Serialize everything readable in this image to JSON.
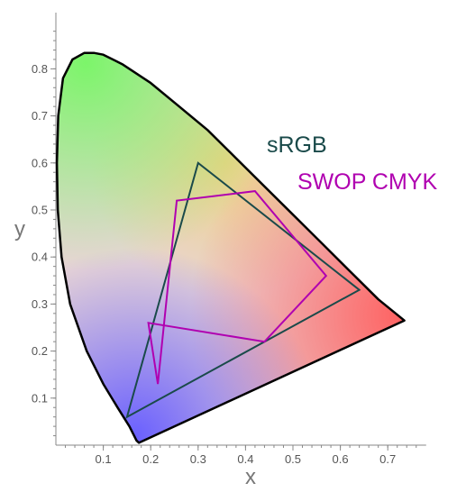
{
  "chart_data": {
    "type": "scatter",
    "title": "",
    "xlabel": "x",
    "ylabel": "y",
    "xlim": [
      0.0,
      0.8
    ],
    "ylim": [
      0.0,
      0.85
    ],
    "x_ticks": [
      0.1,
      0.2,
      0.3,
      0.4,
      0.5,
      0.6,
      0.7
    ],
    "x_tick_labels": [
      "0.1",
      "0.2",
      "0.3",
      "0.4",
      "0.5",
      "0.6",
      "0.7"
    ],
    "y_ticks": [
      0.1,
      0.2,
      0.3,
      0.4,
      0.5,
      0.6,
      0.7,
      0.8
    ],
    "y_tick_labels": [
      "0.1",
      "0.2",
      "0.3",
      "0.4",
      "0.5",
      "0.6",
      "0.7",
      "0.8"
    ],
    "grid": false,
    "spectral_locus": {
      "x": [
        0.175,
        0.17,
        0.165,
        0.155,
        0.13,
        0.1,
        0.065,
        0.03,
        0.012,
        0.004,
        0.002,
        0.005,
        0.015,
        0.035,
        0.06,
        0.08,
        0.1,
        0.14,
        0.2,
        0.26,
        0.32,
        0.38,
        0.44,
        0.5,
        0.56,
        0.62,
        0.68,
        0.735
      ],
      "y": [
        0.005,
        0.01,
        0.02,
        0.04,
        0.08,
        0.13,
        0.2,
        0.3,
        0.4,
        0.5,
        0.6,
        0.7,
        0.78,
        0.82,
        0.834,
        0.834,
        0.83,
        0.81,
        0.77,
        0.72,
        0.67,
        0.61,
        0.55,
        0.49,
        0.43,
        0.37,
        0.31,
        0.265
      ]
    },
    "series": [
      {
        "name": "sRGB",
        "color": "#1a4a4a",
        "x": [
          0.64,
          0.3,
          0.15
        ],
        "y": [
          0.33,
          0.6,
          0.06
        ]
      },
      {
        "name": "SWOP CMYK",
        "color": "#b000b0",
        "x": [
          0.215,
          0.255,
          0.42,
          0.57,
          0.44,
          0.195
        ],
        "y": [
          0.13,
          0.52,
          0.54,
          0.36,
          0.22,
          0.26
        ]
      }
    ]
  }
}
